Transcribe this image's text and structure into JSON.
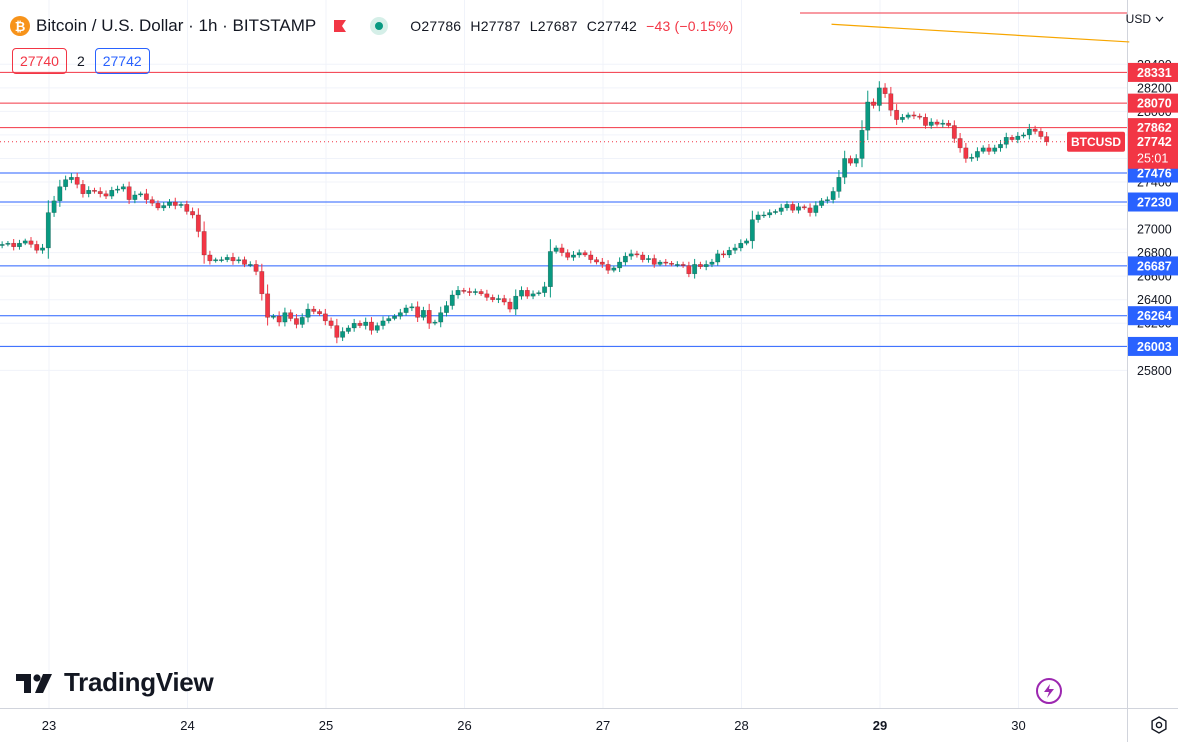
{
  "header": {
    "symbol_glyph": "₿",
    "title": "Bitcoin / U.S. Dollar · 1h · BITSTAMP",
    "ohlc": {
      "o_label": "O",
      "o": "27786",
      "h_label": "H",
      "h": "27787",
      "l_label": "L",
      "l": "27687",
      "c_label": "C",
      "c": "27742",
      "change": "−43 (−0.15%)"
    },
    "sell_price": "27740",
    "spread": "2",
    "buy_price": "27742"
  },
  "currency_label": "USD",
  "branding": "TradingView",
  "colors": {
    "up": "#089981",
    "down": "#f23645",
    "resistance": "#f23645",
    "support": "#2962ff",
    "trendline": "#f7a600",
    "grid": "#f0f3fa",
    "price_tag": "#f23645"
  },
  "chart_data": {
    "type": "candlestick",
    "symbol": "BTCUSD",
    "timeframe": "1h",
    "x_tick_labels": [
      "23",
      "24",
      "25",
      "26",
      "27",
      "28",
      "29",
      "30"
    ],
    "y_tick_labels": [
      25800,
      26000,
      26200,
      26400,
      26600,
      26800,
      27000,
      27200,
      27400,
      27600,
      27800,
      28000,
      28200,
      28400
    ],
    "ylim": [
      25650,
      28710
    ],
    "last_price": 27742,
    "last_price_label": "27742",
    "countdown": "25:01",
    "price_tag_label": "BTCUSD",
    "horizontal_levels": [
      {
        "price": 28331,
        "label": "28331",
        "kind": "resistance"
      },
      {
        "price": 28070,
        "label": "28070",
        "kind": "resistance"
      },
      {
        "price": 27862,
        "label": "27862",
        "kind": "resistance"
      },
      {
        "price": 27476,
        "label": "27476",
        "kind": "support"
      },
      {
        "price": 27230,
        "label": "27230",
        "kind": "support"
      },
      {
        "price": 26687,
        "label": "26687",
        "kind": "support"
      },
      {
        "price": 26264,
        "label": "26264",
        "kind": "support"
      },
      {
        "price": 26003,
        "label": "26003",
        "kind": "support"
      }
    ],
    "trendline": {
      "from": {
        "day": 28.65,
        "price": 28740
      },
      "to": {
        "day": 30.8,
        "price": 28590
      }
    },
    "grid": true,
    "candles_per_day": 24,
    "start_day": 22.62,
    "closes": [
      26860,
      26870,
      26880,
      26850,
      26880,
      26900,
      26870,
      26820,
      26840,
      27140,
      27240,
      27360,
      27420,
      27440,
      27380,
      27300,
      27330,
      27320,
      27300,
      27280,
      27330,
      27340,
      27360,
      27250,
      27290,
      27300,
      27250,
      27220,
      27180,
      27200,
      27230,
      27200,
      27210,
      27150,
      27120,
      26980,
      26780,
      26730,
      26740,
      26740,
      26760,
      26730,
      26740,
      26700,
      26700,
      26640,
      26450,
      26250,
      26260,
      26210,
      26290,
      26240,
      26190,
      26250,
      26320,
      26300,
      26280,
      26220,
      26180,
      26080,
      26130,
      26160,
      26200,
      26180,
      26210,
      26140,
      26180,
      26220,
      26240,
      26260,
      26290,
      26330,
      26340,
      26250,
      26310,
      26200,
      26210,
      26290,
      26350,
      26440,
      26480,
      26470,
      26460,
      26470,
      26450,
      26420,
      26400,
      26410,
      26380,
      26320,
      26430,
      26480,
      26430,
      26450,
      26460,
      26510,
      26810,
      26840,
      26800,
      26760,
      26780,
      26800,
      26780,
      26740,
      26720,
      26700,
      26650,
      26670,
      26720,
      26770,
      26790,
      26780,
      26740,
      26750,
      26700,
      26720,
      26710,
      26700,
      26700,
      26690,
      26620,
      26700,
      26680,
      26700,
      26720,
      26790,
      26780,
      26820,
      26840,
      26880,
      26900,
      27080,
      27120,
      27120,
      27140,
      27150,
      27180,
      27210,
      27160,
      27190,
      27180,
      27140,
      27200,
      27240,
      27250,
      27320,
      27440,
      27600,
      27560,
      27600,
      27840,
      28080,
      28050,
      28200,
      28150,
      28010,
      27930,
      27950,
      27970,
      27960,
      27950,
      27880,
      27910,
      27890,
      27900,
      27880,
      27770,
      27690,
      27600,
      27610,
      27660,
      27690,
      27660,
      27690,
      27720,
      27780,
      27760,
      27790,
      27800,
      27850,
      27830,
      27786,
      27742
    ]
  }
}
